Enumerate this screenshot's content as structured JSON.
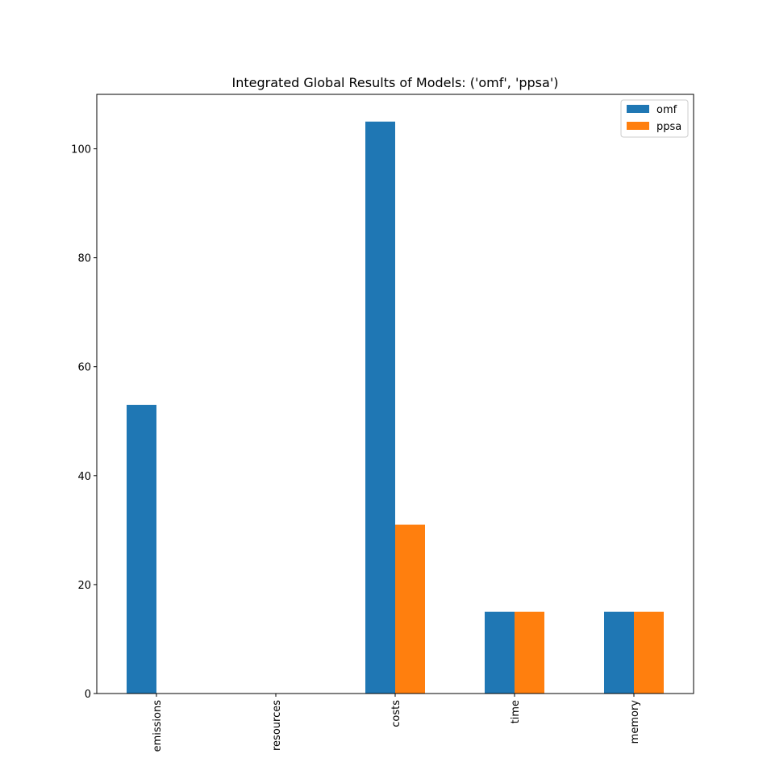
{
  "chart_data": {
    "type": "bar",
    "title": "Integrated Global Results of Models: ('omf', 'ppsa')",
    "xlabel": "",
    "ylabel": "",
    "categories": [
      "emissions",
      "resources",
      "costs",
      "time",
      "memory"
    ],
    "series": [
      {
        "name": "omf",
        "color": "#1f77b4",
        "values": [
          53,
          0,
          105,
          15,
          15
        ]
      },
      {
        "name": "ppsa",
        "color": "#ff7f0e",
        "values": [
          0,
          0,
          31,
          15,
          15
        ]
      }
    ],
    "ylim": [
      0,
      110
    ],
    "yticks": [
      0,
      20,
      40,
      60,
      80,
      100
    ],
    "grid": false,
    "legend_position": "top-right"
  }
}
